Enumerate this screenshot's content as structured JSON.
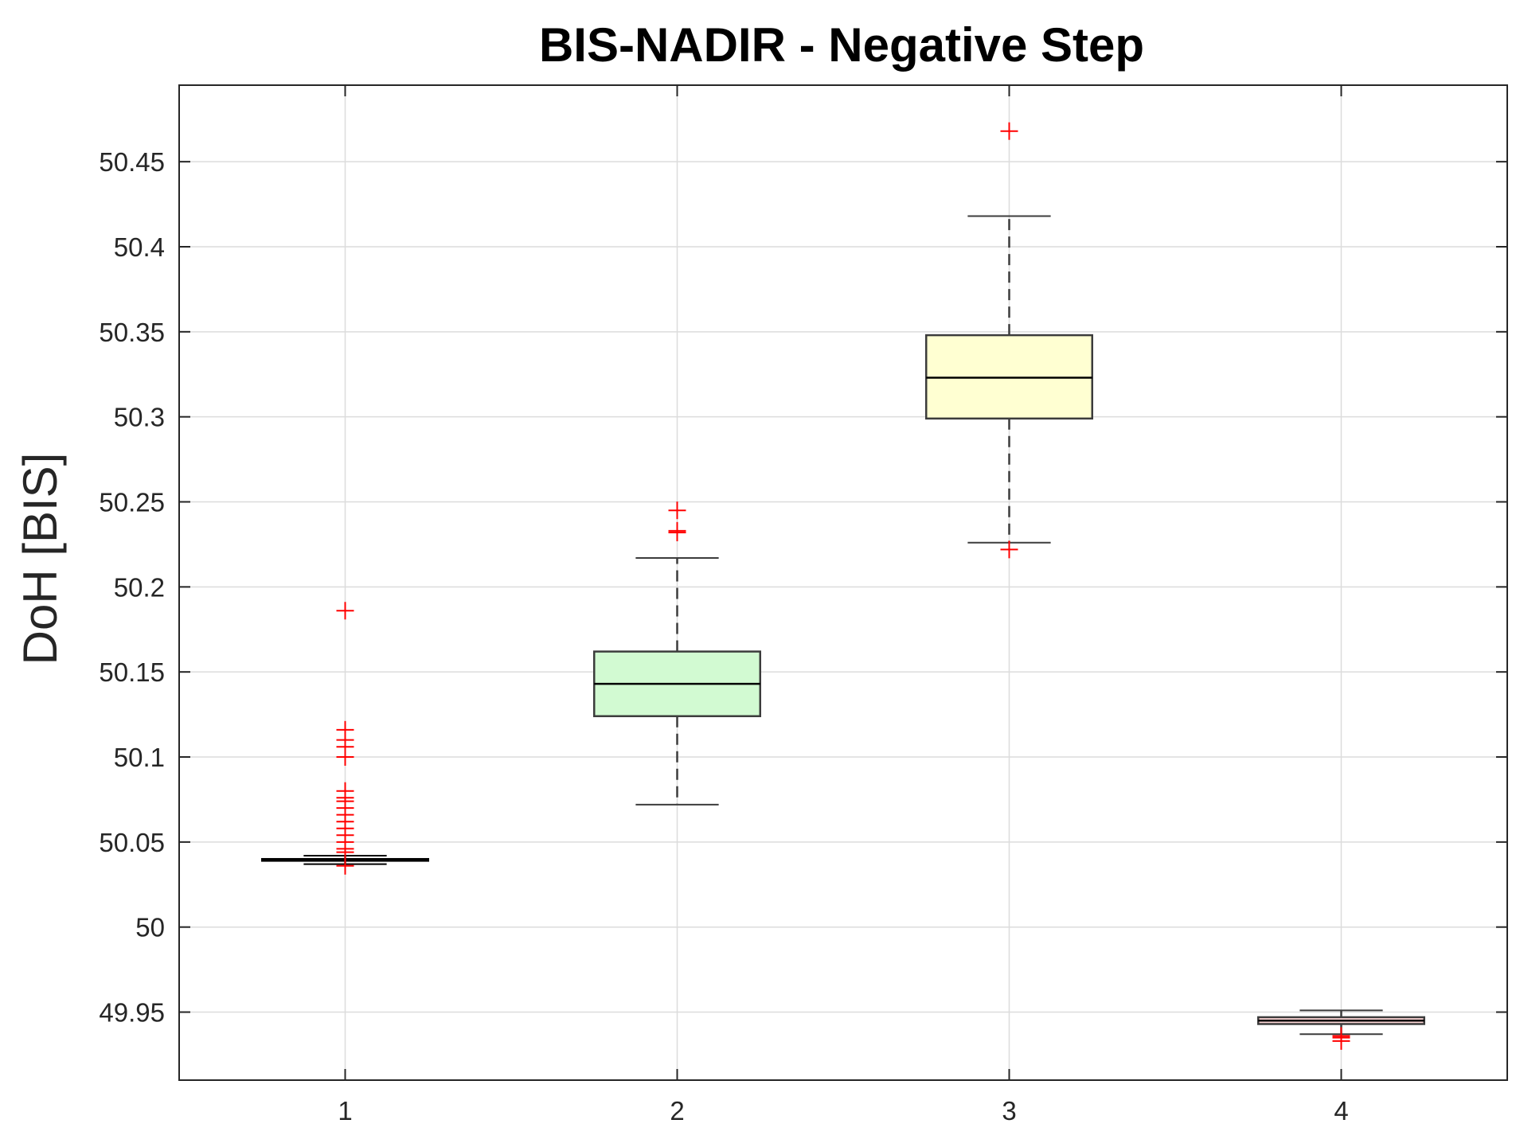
{
  "chart_data": {
    "type": "box",
    "title": "BIS-NADIR - Negative Step",
    "xlabel": "",
    "ylabel": "DoH [BIS]",
    "ylim": [
      49.91,
      50.495
    ],
    "xlim": [
      0.5,
      4.5
    ],
    "grid": true,
    "categories": [
      "1",
      "2",
      "3",
      "4"
    ],
    "y_ticks": [
      "49.95",
      "50",
      "50.05",
      "50.1",
      "50.15",
      "50.2",
      "50.25",
      "50.3",
      "50.35",
      "50.4",
      "50.45"
    ],
    "boxes": [
      {
        "category": "1",
        "q1": 50.039,
        "median": 50.0395,
        "q3": 50.04,
        "whisker_low": 50.037,
        "whisker_high": 50.042,
        "box_color": "#000000",
        "box_fill": "#ffffff",
        "outliers": [
          50.186,
          50.116,
          50.11,
          50.106,
          50.1,
          50.08,
          50.076,
          50.074,
          50.07,
          50.066,
          50.062,
          50.058,
          50.054,
          50.05,
          50.046,
          50.044,
          50.036
        ]
      },
      {
        "category": "2",
        "q1": 50.124,
        "median": 50.143,
        "q3": 50.162,
        "whisker_low": 50.072,
        "whisker_high": 50.217,
        "box_color": "#3c3c3c",
        "box_fill": "#d2fad2",
        "outliers": [
          50.245,
          50.233,
          50.232
        ]
      },
      {
        "category": "3",
        "q1": 50.299,
        "median": 50.323,
        "q3": 50.348,
        "whisker_low": 50.226,
        "whisker_high": 50.418,
        "box_color": "#3c3c3c",
        "box_fill": "#ffffd2",
        "outliers": [
          50.468,
          50.222
        ]
      },
      {
        "category": "4",
        "q1": 49.943,
        "median": 49.945,
        "q3": 49.947,
        "whisker_low": 49.937,
        "whisker_high": 49.951,
        "box_color": "#3c3c3c",
        "box_fill": "#ffd8d8",
        "outliers": [
          49.936,
          49.935,
          49.933
        ]
      }
    ],
    "colors": {
      "grid": "#dcdcdc",
      "axes": "#262626",
      "outlier": "#ff0000",
      "whisker": "#3c3c3c"
    }
  }
}
